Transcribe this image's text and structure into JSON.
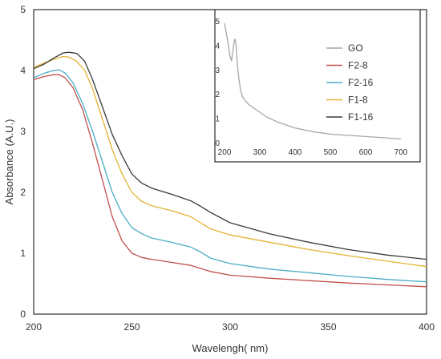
{
  "chart_data": [
    {
      "type": "line",
      "title": "",
      "xlabel": "Wavelengh( nm)",
      "ylabel": "Absorbance (A.U.)",
      "xlim": [
        200,
        400
      ],
      "ylim": [
        0,
        5
      ],
      "x_ticks": [
        "200",
        "250",
        "300",
        "350",
        "400"
      ],
      "y_ticks": [
        "0",
        "1",
        "2",
        "3",
        "4",
        "5"
      ],
      "grid": false,
      "series": [
        {
          "name": "F2-8",
          "color": "#c0504d",
          "x": [
            200,
            205,
            210,
            213,
            216,
            220,
            225,
            230,
            235,
            240,
            245,
            250,
            255,
            260,
            270,
            280,
            285,
            290,
            300,
            320,
            340,
            360,
            380,
            400
          ],
          "y": [
            3.85,
            3.9,
            3.93,
            3.93,
            3.88,
            3.72,
            3.35,
            2.8,
            2.2,
            1.6,
            1.2,
            1.0,
            0.93,
            0.9,
            0.85,
            0.8,
            0.75,
            0.7,
            0.64,
            0.59,
            0.55,
            0.51,
            0.48,
            0.45
          ]
        },
        {
          "name": "F2-16",
          "color": "#4bacc6",
          "x": [
            200,
            205,
            210,
            213,
            216,
            220,
            225,
            230,
            235,
            240,
            245,
            250,
            255,
            260,
            270,
            280,
            285,
            290,
            300,
            320,
            340,
            360,
            380,
            400
          ],
          "y": [
            3.88,
            3.95,
            4.0,
            4.01,
            3.96,
            3.8,
            3.45,
            3.0,
            2.5,
            2.0,
            1.65,
            1.42,
            1.32,
            1.25,
            1.18,
            1.1,
            1.02,
            0.92,
            0.83,
            0.74,
            0.68,
            0.62,
            0.57,
            0.53
          ]
        },
        {
          "name": "F1-8",
          "color": "#e4b234",
          "x": [
            200,
            205,
            210,
            215,
            218,
            222,
            226,
            230,
            235,
            240,
            245,
            250,
            255,
            260,
            270,
            280,
            285,
            290,
            300,
            320,
            340,
            360,
            380,
            400
          ],
          "y": [
            4.05,
            4.12,
            4.18,
            4.23,
            4.22,
            4.15,
            4.0,
            3.7,
            3.2,
            2.7,
            2.3,
            2.0,
            1.85,
            1.78,
            1.7,
            1.6,
            1.5,
            1.4,
            1.3,
            1.18,
            1.06,
            0.96,
            0.87,
            0.78
          ]
        },
        {
          "name": "F1-16",
          "color": "#3a3a3a",
          "x": [
            200,
            205,
            210,
            215,
            218,
            222,
            226,
            230,
            235,
            240,
            245,
            250,
            255,
            260,
            270,
            280,
            285,
            290,
            300,
            320,
            340,
            360,
            380,
            400
          ],
          "y": [
            4.03,
            4.1,
            4.2,
            4.29,
            4.3,
            4.28,
            4.15,
            3.85,
            3.4,
            2.95,
            2.6,
            2.3,
            2.15,
            2.07,
            1.97,
            1.86,
            1.77,
            1.67,
            1.5,
            1.32,
            1.18,
            1.06,
            0.97,
            0.9
          ]
        }
      ]
    },
    {
      "type": "line",
      "title": "",
      "xlabel": "",
      "ylabel": "",
      "xlim": [
        200,
        700
      ],
      "ylim": [
        0,
        5
      ],
      "x_ticks": [
        "200",
        "300",
        "400",
        "500",
        "600",
        "700"
      ],
      "y_ticks": [
        "0",
        "1",
        "2",
        "3",
        "4",
        "5"
      ],
      "grid": false,
      "legend": "right",
      "series": [
        {
          "name": "GO",
          "color": "#a6a6a6",
          "x": [
            200,
            205,
            210,
            215,
            220,
            225,
            228,
            230,
            233,
            236,
            240,
            245,
            250,
            260,
            270,
            280,
            300,
            320,
            350,
            400,
            450,
            500,
            550,
            600,
            650,
            700
          ],
          "y": [
            4.9,
            4.5,
            4.1,
            3.6,
            3.35,
            3.9,
            4.2,
            4.25,
            3.95,
            3.3,
            2.7,
            2.2,
            1.9,
            1.7,
            1.55,
            1.45,
            1.25,
            1.05,
            0.85,
            0.6,
            0.45,
            0.35,
            0.3,
            0.25,
            0.2,
            0.15
          ]
        }
      ]
    }
  ]
}
